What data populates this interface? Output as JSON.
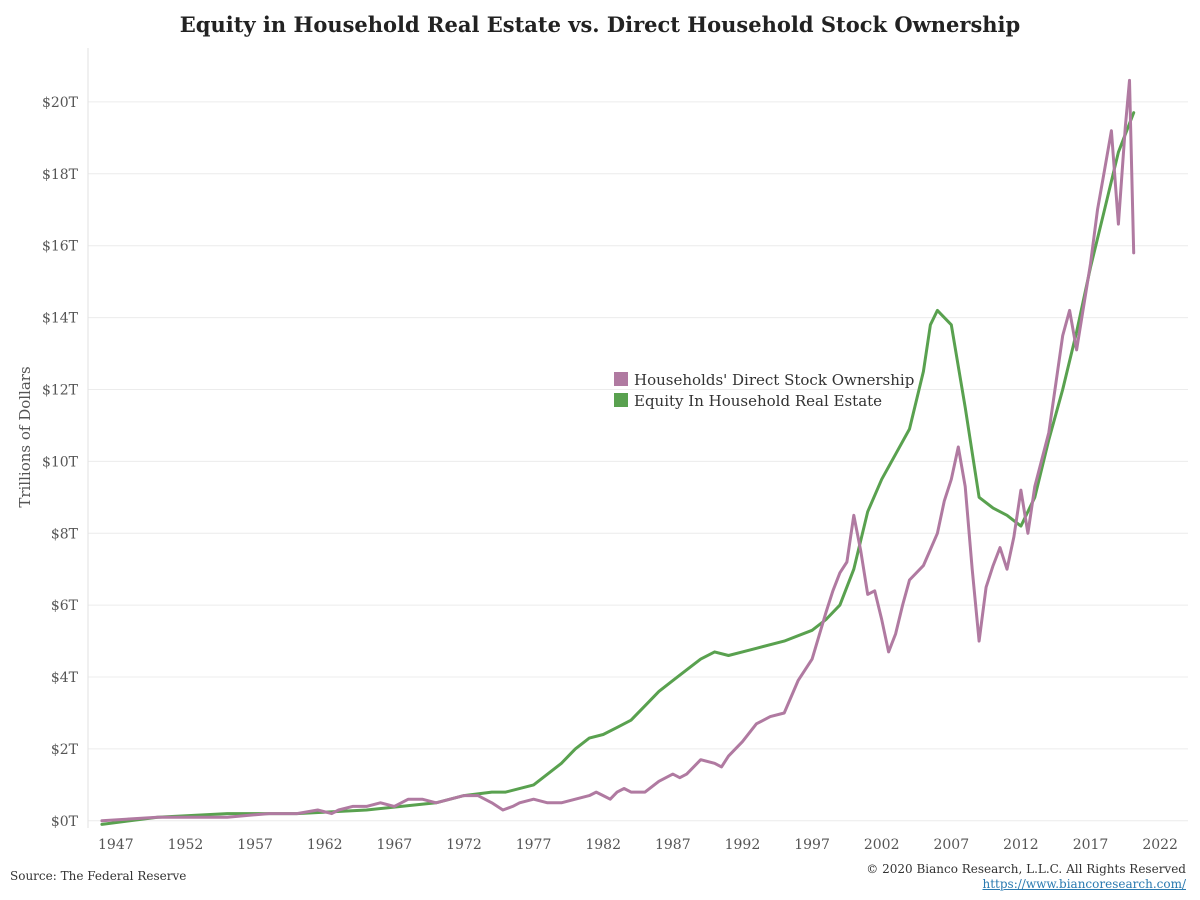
{
  "chart_data": {
    "type": "line",
    "title": "Equity in Household Real Estate vs. Direct Household Stock Ownership",
    "xlabel": "",
    "ylabel": "Trillions of Dollars",
    "xlim": [
      1945,
      2024
    ],
    "ylim": [
      -0.2,
      21.5
    ],
    "x_ticks": [
      1947,
      1952,
      1957,
      1962,
      1967,
      1972,
      1977,
      1982,
      1987,
      1992,
      1997,
      2002,
      2007,
      2012,
      2017,
      2022
    ],
    "x_tick_labels": [
      "1947",
      "1952",
      "1957",
      "1962",
      "1967",
      "1972",
      "1977",
      "1982",
      "1987",
      "1992",
      "1997",
      "2002",
      "2007",
      "2012",
      "2017",
      "2022"
    ],
    "y_ticks": [
      0,
      2,
      4,
      6,
      8,
      10,
      12,
      14,
      16,
      18,
      20
    ],
    "y_tick_labels": [
      "$0T",
      "$2T",
      "$4T",
      "$6T",
      "$8T",
      "$10T",
      "$12T",
      "$14T",
      "$16T",
      "$18T",
      "$20T"
    ],
    "grid": "horizontal",
    "legend": "center",
    "series": [
      {
        "name": "Households' Direct Stock Ownership",
        "color": "#b07aa1",
        "x": [
          1946,
          1950,
          1955,
          1958,
          1960,
          1961.5,
          1962.5,
          1963,
          1964,
          1965,
          1966,
          1967,
          1968,
          1969,
          1970,
          1971,
          1972,
          1973,
          1974,
          1974.8,
          1975.5,
          1976,
          1977,
          1978,
          1979,
          1980,
          1981,
          1981.5,
          1982,
          1982.5,
          1983,
          1983.5,
          1984,
          1985,
          1986,
          1987,
          1987.5,
          1988,
          1989,
          1990,
          1990.5,
          1991,
          1992,
          1993,
          1994,
          1995,
          1996,
          1997,
          1998,
          1998.5,
          1999,
          1999.5,
          2000,
          2000.5,
          2001,
          2001.5,
          2002,
          2002.5,
          2003,
          2003.5,
          2004,
          2005,
          2006,
          2006.5,
          2007,
          2007.5,
          2008,
          2008.5,
          2009,
          2009.5,
          2010,
          2010.5,
          2011,
          2011.5,
          2012,
          2012.5,
          2013,
          2014,
          2015,
          2015.5,
          2016,
          2017,
          2017.5,
          2018,
          2018.5,
          2019,
          2019.5,
          2019.8,
          2020.1
        ],
        "y": [
          0,
          0.1,
          0.1,
          0.2,
          0.2,
          0.3,
          0.2,
          0.3,
          0.4,
          0.4,
          0.5,
          0.4,
          0.6,
          0.6,
          0.5,
          0.6,
          0.7,
          0.7,
          0.5,
          0.3,
          0.4,
          0.5,
          0.6,
          0.5,
          0.5,
          0.6,
          0.7,
          0.8,
          0.7,
          0.6,
          0.8,
          0.9,
          0.8,
          0.8,
          1.1,
          1.3,
          1.2,
          1.3,
          1.7,
          1.6,
          1.5,
          1.8,
          2.2,
          2.7,
          2.9,
          3.0,
          3.9,
          4.5,
          5.8,
          6.4,
          6.9,
          7.2,
          8.5,
          7.5,
          6.3,
          6.4,
          5.6,
          4.7,
          5.2,
          6.0,
          6.7,
          7.1,
          8.0,
          8.9,
          9.5,
          10.4,
          9.3,
          7.0,
          5.0,
          6.5,
          7.1,
          7.6,
          7.0,
          7.9,
          9.2,
          8.0,
          9.3,
          10.8,
          13.5,
          14.2,
          13.1,
          15.5,
          17.0,
          18.1,
          19.2,
          16.6,
          19.3,
          20.6,
          15.8
        ]
      },
      {
        "name": "Equity In Household Real Estate",
        "color": "#59a14f",
        "x": [
          1946,
          1950,
          1955,
          1960,
          1965,
          1970,
          1972,
          1974,
          1975,
          1977,
          1979,
          1980,
          1981,
          1982,
          1983,
          1984,
          1985,
          1986,
          1987,
          1988,
          1989,
          1990,
          1991,
          1992,
          1993,
          1995,
          1997,
          1998,
          1999,
          2000,
          2001,
          2002,
          2003,
          2004,
          2005,
          2005.5,
          2006,
          2007,
          2008,
          2009,
          2010,
          2011,
          2012,
          2013,
          2014,
          2015,
          2016,
          2017,
          2018,
          2019,
          2020.1
        ],
        "y": [
          -0.1,
          0.1,
          0.2,
          0.2,
          0.3,
          0.5,
          0.7,
          0.8,
          0.8,
          1.0,
          1.6,
          2.0,
          2.3,
          2.4,
          2.6,
          2.8,
          3.2,
          3.6,
          3.9,
          4.2,
          4.5,
          4.7,
          4.6,
          4.7,
          4.8,
          5.0,
          5.3,
          5.6,
          6.0,
          7.0,
          8.6,
          9.5,
          10.2,
          10.9,
          12.5,
          13.8,
          14.2,
          13.8,
          11.5,
          9.0,
          8.7,
          8.5,
          8.2,
          9.0,
          10.6,
          12.0,
          13.6,
          15.4,
          17.0,
          18.6,
          19.7
        ]
      }
    ]
  },
  "footer": {
    "source": "Source: The Federal Reserve",
    "copyright": "© 2020 Bianco Research, L.L.C. All Rights Reserved",
    "link": "https://www.biancoresearch.com/"
  }
}
